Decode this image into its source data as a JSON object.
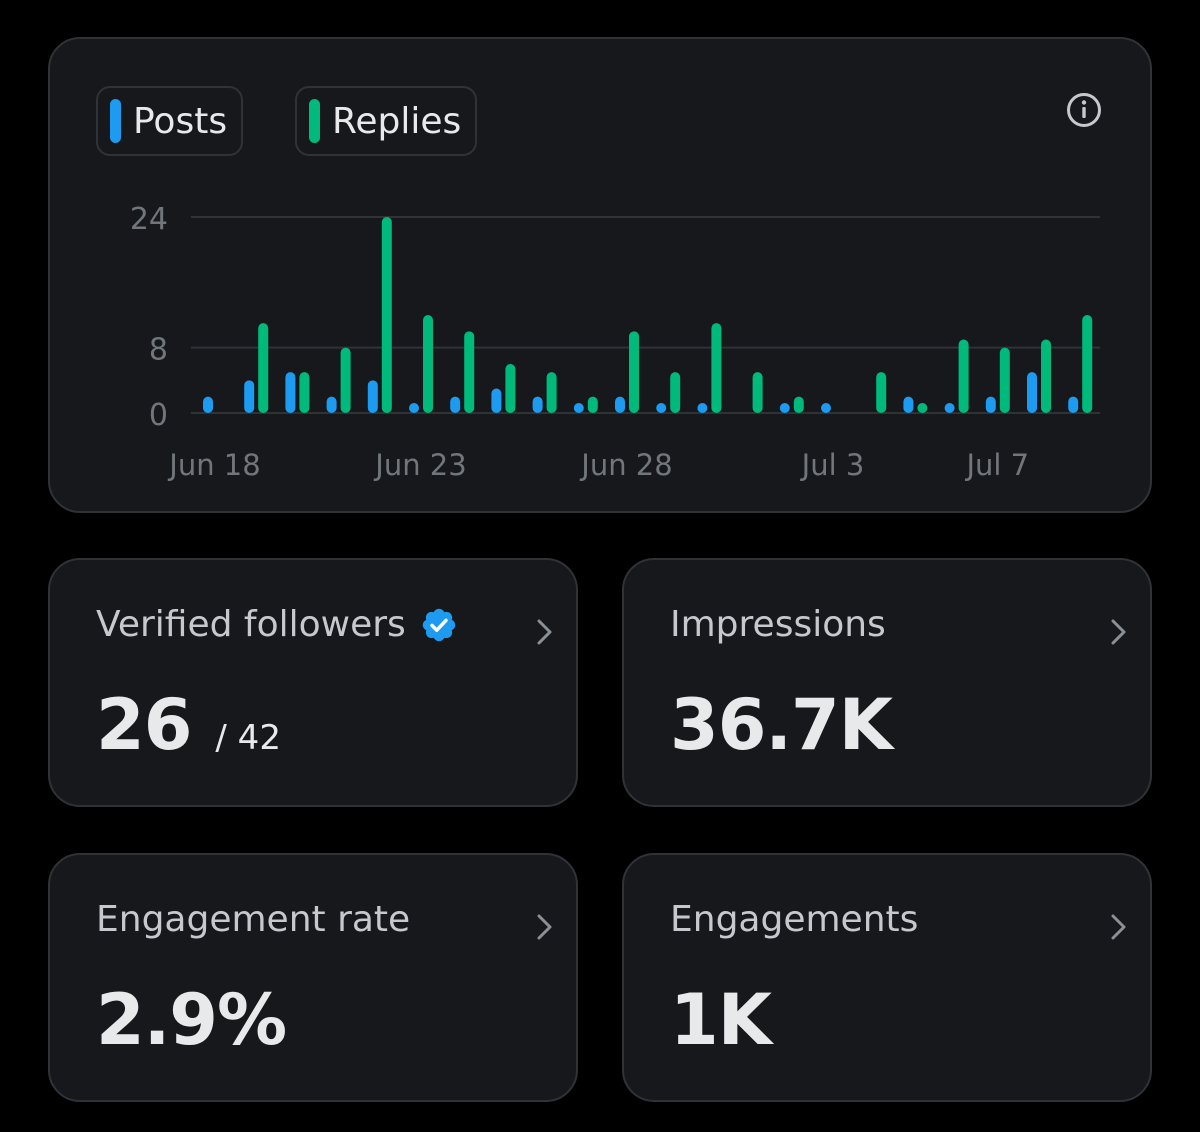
{
  "legend": {
    "posts_label": "Posts",
    "replies_label": "Replies"
  },
  "colors": {
    "posts": "#1d9bf0",
    "replies": "#00ba7c",
    "background": "#000000",
    "card": "#16181c",
    "border": "#2f3336",
    "text_primary": "#e7e9ea",
    "text_secondary": "#c5c8cc",
    "axis_text": "#71767b",
    "gridline": "#2f3336"
  },
  "icons": {
    "info": "info-circle-icon",
    "verified": "verified-badge-icon",
    "chevron": "chevron-right-icon"
  },
  "chart_data": {
    "type": "bar",
    "x": [
      "Jun 18",
      "Jun 19",
      "Jun 20",
      "Jun 21",
      "Jun 22",
      "Jun 23",
      "Jun 24",
      "Jun 25",
      "Jun 26",
      "Jun 27",
      "Jun 28",
      "Jun 29",
      "Jun 30",
      "Jul 1",
      "Jul 2",
      "Jul 3",
      "Jul 4",
      "Jul 5",
      "Jul 6",
      "Jul 7",
      "Jul 8",
      "Jul 9",
      "Jul 10"
    ],
    "x_tick_labels": [
      "Jun 18",
      "Jun 23",
      "Jun 28",
      "Jul 3",
      "Jul 7"
    ],
    "y_ticks": [
      0,
      8,
      24
    ],
    "ylim": [
      0,
      24
    ],
    "grid": true,
    "series": [
      {
        "name": "Posts",
        "values": [
          2,
          4,
          5,
          2,
          4,
          1,
          2,
          3,
          2,
          1,
          2,
          1,
          1,
          0,
          1,
          1,
          0,
          2,
          1,
          2,
          5,
          2,
          0
        ]
      },
      {
        "name": "Replies",
        "values": [
          0,
          11,
          5,
          8,
          24,
          12,
          10,
          6,
          5,
          2,
          10,
          5,
          11,
          5,
          2,
          0,
          5,
          1,
          9,
          8,
          9,
          12,
          0
        ]
      }
    ]
  },
  "stats": {
    "verified_followers": {
      "label": "Verified followers",
      "value": "26",
      "sub": "/ 42"
    },
    "impressions": {
      "label": "Impressions",
      "value": "36.7K"
    },
    "engagement_rate": {
      "label": "Engagement rate",
      "value": "2.9%"
    },
    "engagements": {
      "label": "Engagements",
      "value": "1K"
    }
  }
}
